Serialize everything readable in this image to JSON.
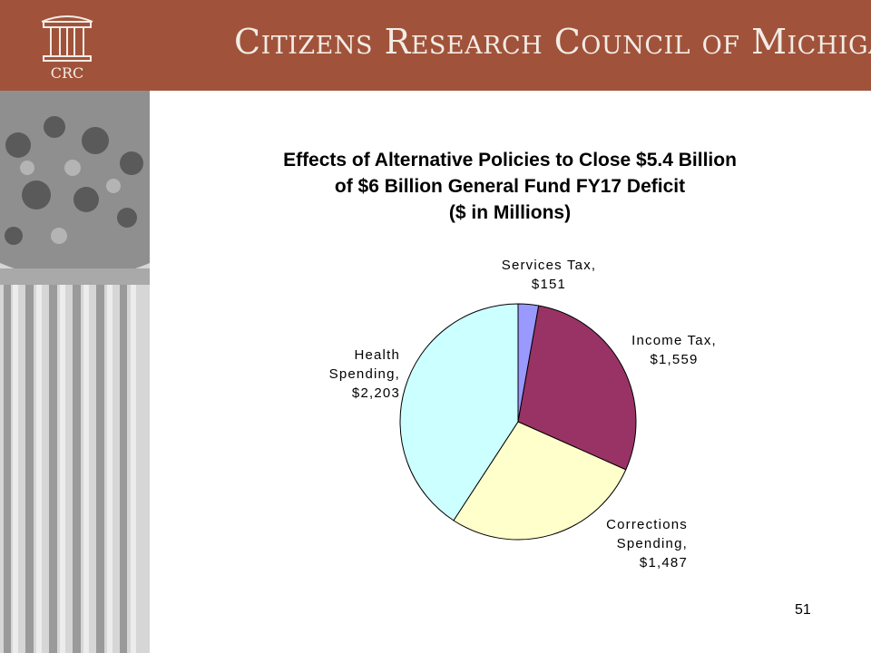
{
  "header": {
    "logo_text": "CRC",
    "org_name": "Citizens Research Council of Michigan",
    "bg_color": "#a0533a"
  },
  "chart_data": {
    "type": "pie",
    "title_lines": [
      "Effects of Alternative Policies to Close $5.4 Billion",
      "of $6 Billion General Fund FY17  Deficit",
      "($ in Millions)"
    ],
    "start_angle_deg": 0,
    "direction": "clockwise",
    "slices": [
      {
        "label_lines": [
          "Services Tax,",
          "$151"
        ],
        "value": 151,
        "color": "#9999ff"
      },
      {
        "label_lines": [
          "Income Tax,",
          "$1,559"
        ],
        "value": 1559,
        "color": "#993366"
      },
      {
        "label_lines": [
          "Corrections",
          "Spending,",
          "$1,487"
        ],
        "value": 1487,
        "color": "#ffffcc"
      },
      {
        "label_lines": [
          "Health",
          "Spending,",
          "$2,203"
        ],
        "value": 2203,
        "color": "#ccffff"
      }
    ]
  },
  "page_number": "51"
}
